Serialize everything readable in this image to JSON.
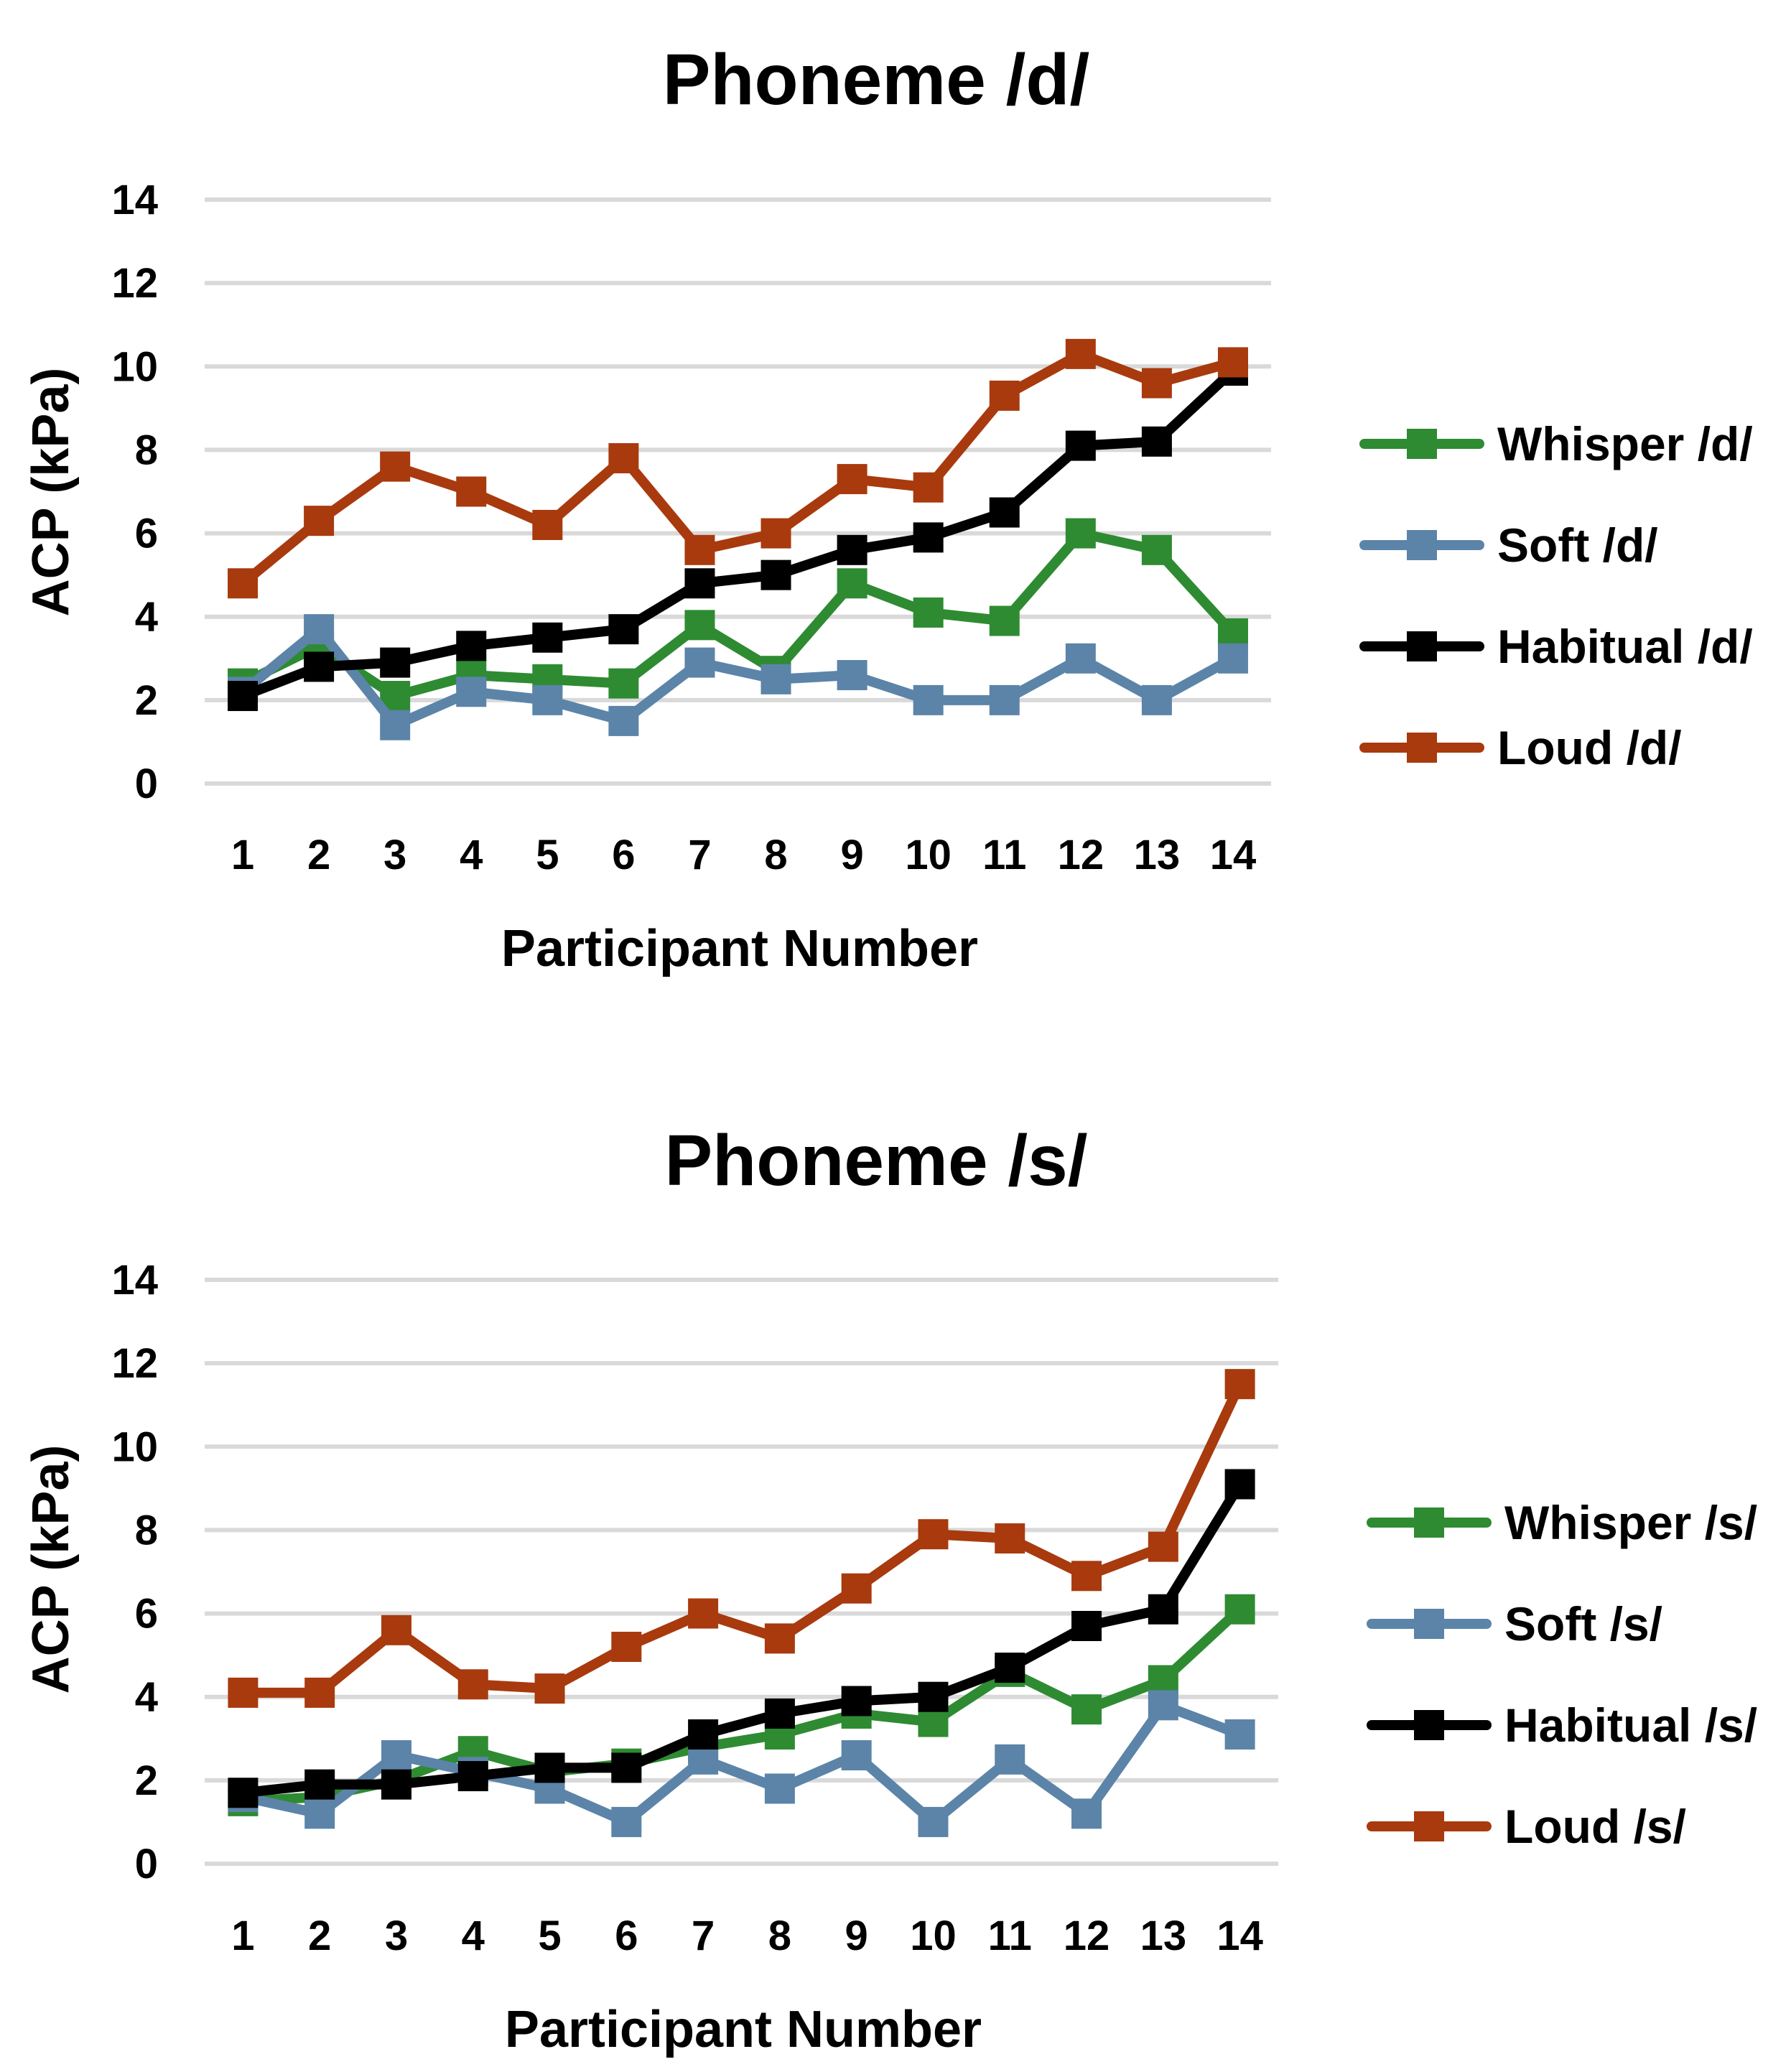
{
  "chart_data": [
    {
      "type": "line",
      "title": "Phoneme /d/",
      "xlabel": "Participant Number",
      "ylabel": "ACP (kPa)",
      "ylim": [
        0,
        14
      ],
      "yticks": [
        0,
        2,
        4,
        6,
        8,
        10,
        12,
        14
      ],
      "grid": true,
      "legend_position": "right",
      "categories": [
        "1",
        "2",
        "3",
        "4",
        "5",
        "6",
        "7",
        "8",
        "9",
        "10",
        "11",
        "12",
        "13",
        "14"
      ],
      "series": [
        {
          "name": "Whisper /d/",
          "color": "#2e8b32",
          "values": [
            2.4,
            3.3,
            2.1,
            2.6,
            2.5,
            2.4,
            3.8,
            2.7,
            4.8,
            4.1,
            3.9,
            6.0,
            5.6,
            3.6
          ]
        },
        {
          "name": "Soft /d/",
          "color": "#5b84a8",
          "values": [
            2.2,
            3.7,
            1.4,
            2.2,
            2.0,
            1.5,
            2.9,
            2.5,
            2.6,
            2.0,
            2.0,
            3.0,
            2.0,
            3.0
          ]
        },
        {
          "name": "Habitual /d/",
          "color": "#000000",
          "values": [
            2.1,
            2.8,
            2.9,
            3.3,
            3.5,
            3.7,
            4.8,
            5.0,
            5.6,
            5.9,
            6.5,
            8.1,
            8.2,
            9.9
          ]
        },
        {
          "name": "Loud /d/",
          "color": "#a83a0e",
          "values": [
            4.8,
            6.3,
            7.6,
            7.0,
            6.2,
            7.8,
            5.6,
            6.0,
            7.3,
            7.1,
            9.3,
            10.3,
            9.6,
            10.1
          ]
        }
      ]
    },
    {
      "type": "line",
      "title": "Phoneme /s/",
      "xlabel": "Participant Number",
      "ylabel": "ACP (kPa)",
      "ylim": [
        0,
        14
      ],
      "yticks": [
        0,
        2,
        4,
        6,
        8,
        10,
        12,
        14
      ],
      "grid": true,
      "legend_position": "right",
      "categories": [
        "1",
        "2",
        "3",
        "4",
        "5",
        "6",
        "7",
        "8",
        "9",
        "10",
        "11",
        "12",
        "13",
        "14"
      ],
      "series": [
        {
          "name": "Whisper /s/",
          "color": "#2e8b32",
          "values": [
            1.5,
            1.6,
            2.0,
            2.7,
            2.2,
            2.4,
            2.8,
            3.1,
            3.6,
            3.4,
            4.6,
            3.7,
            4.4,
            6.1
          ]
        },
        {
          "name": "Soft /s/",
          "color": "#5b84a8",
          "values": [
            1.6,
            1.2,
            2.6,
            2.2,
            1.8,
            1.0,
            2.5,
            1.8,
            2.6,
            1.0,
            2.5,
            1.2,
            3.8,
            3.1
          ]
        },
        {
          "name": "Habitual /s/",
          "color": "#000000",
          "values": [
            1.7,
            1.9,
            1.9,
            2.1,
            2.3,
            2.3,
            3.1,
            3.6,
            3.9,
            4.0,
            4.7,
            5.7,
            6.1,
            9.1
          ]
        },
        {
          "name": "Loud /s/",
          "color": "#a83a0e",
          "values": [
            4.1,
            4.1,
            5.6,
            4.3,
            4.2,
            5.2,
            6.0,
            5.4,
            6.6,
            7.9,
            7.8,
            6.9,
            7.6,
            11.5
          ]
        }
      ]
    }
  ]
}
